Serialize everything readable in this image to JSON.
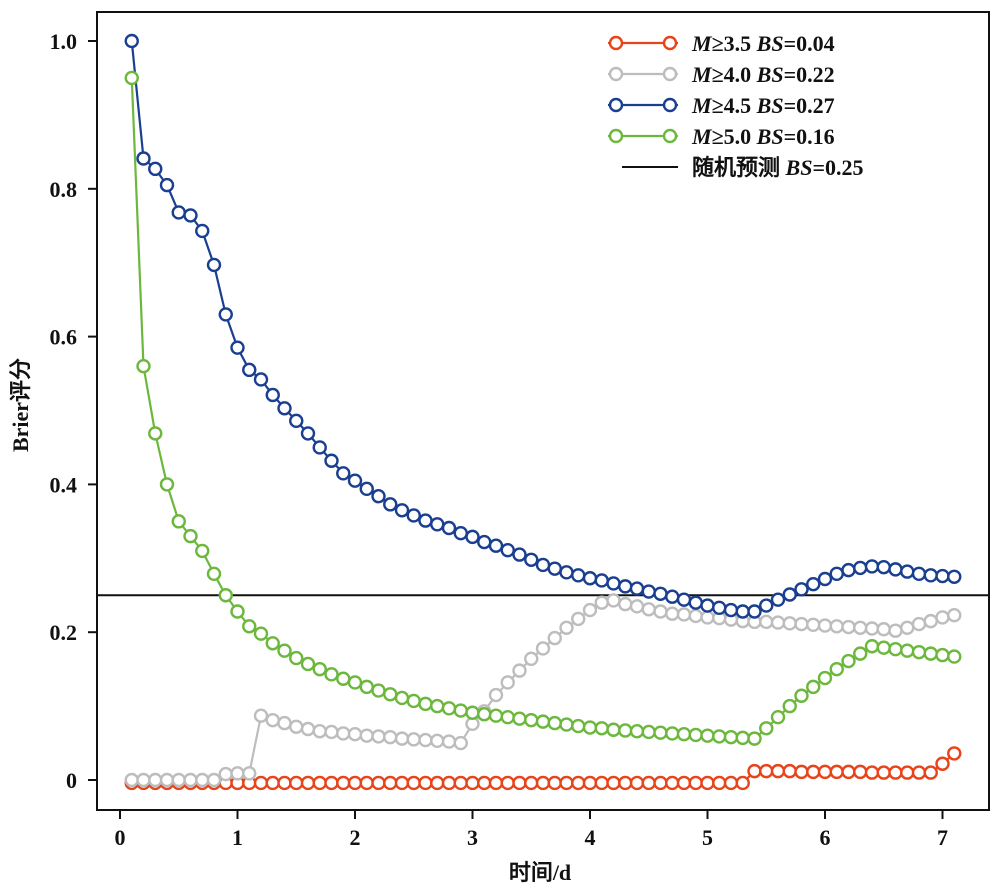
{
  "chart_data": {
    "type": "line",
    "xlabel": "时间/d",
    "ylabel": "Brier评分",
    "xlim": [
      -0.1,
      7.4
    ],
    "ylim": [
      -0.04,
      1.04
    ],
    "x_ticks": [
      0,
      1,
      2,
      3,
      4,
      5,
      6,
      7
    ],
    "y_ticks": [
      0,
      0.2,
      0.4,
      0.6,
      0.8,
      1.0
    ],
    "y_tick_labels": [
      "0",
      "0.2",
      "0.4",
      "0.6",
      "0.8",
      "1.0"
    ],
    "grid": false,
    "legend_position": "top-right",
    "x": [
      0.1,
      0.2,
      0.3,
      0.4,
      0.5,
      0.6,
      0.7,
      0.8,
      0.9,
      1.0,
      1.1,
      1.2,
      1.3,
      1.4,
      1.5,
      1.6,
      1.7,
      1.8,
      1.9,
      2.0,
      2.1,
      2.2,
      2.3,
      2.4,
      2.5,
      2.6,
      2.7,
      2.8,
      2.9,
      3.0,
      3.1,
      3.2,
      3.3,
      3.4,
      3.5,
      3.6,
      3.7,
      3.8,
      3.9,
      4.0,
      4.1,
      4.2,
      4.3,
      4.4,
      4.5,
      4.6,
      4.7,
      4.8,
      4.9,
      5.0,
      5.1,
      5.2,
      5.3,
      5.4,
      5.5,
      5.6,
      5.7,
      5.8,
      5.9,
      6.0,
      6.1,
      6.2,
      6.3,
      6.4,
      6.5,
      6.6,
      6.7,
      6.8,
      6.9,
      7.0,
      7.1
    ],
    "series": [
      {
        "name": "M≥3.5 BS=0.04",
        "label_prefix": "M",
        "label_mid": "≥3.5 ",
        "label_bs": "BS",
        "label_val": "=0.04",
        "color": "#e8441a",
        "values": [
          -0.004,
          -0.004,
          -0.004,
          -0.004,
          -0.004,
          -0.004,
          -0.004,
          -0.004,
          -0.004,
          -0.004,
          -0.004,
          -0.004,
          -0.004,
          -0.004,
          -0.004,
          -0.004,
          -0.004,
          -0.004,
          -0.004,
          -0.004,
          -0.004,
          -0.004,
          -0.004,
          -0.004,
          -0.004,
          -0.004,
          -0.004,
          -0.004,
          -0.004,
          -0.004,
          -0.004,
          -0.004,
          -0.004,
          -0.004,
          -0.004,
          -0.004,
          -0.004,
          -0.004,
          -0.004,
          -0.004,
          -0.004,
          -0.004,
          -0.004,
          -0.004,
          -0.004,
          -0.004,
          -0.004,
          -0.004,
          -0.004,
          -0.004,
          -0.004,
          -0.004,
          -0.004,
          0.012,
          0.012,
          0.012,
          0.012,
          0.011,
          0.011,
          0.011,
          0.011,
          0.011,
          0.011,
          0.01,
          0.01,
          0.01,
          0.01,
          0.01,
          0.01,
          0.022,
          0.036
        ]
      },
      {
        "name": "M≥4.0 BS=0.22",
        "label_prefix": "M",
        "label_mid": "≥4.0 ",
        "label_bs": "BS",
        "label_val": "=0.22",
        "color": "#bdbdbd",
        "values": [
          0.0,
          0.0,
          0.0,
          0.0,
          0.0,
          0.0,
          0.0,
          0.0,
          0.008,
          0.009,
          0.009,
          0.087,
          0.081,
          0.077,
          0.072,
          0.069,
          0.066,
          0.065,
          0.063,
          0.062,
          0.06,
          0.059,
          0.058,
          0.056,
          0.055,
          0.054,
          0.053,
          0.052,
          0.05,
          0.076,
          0.093,
          0.115,
          0.132,
          0.148,
          0.164,
          0.178,
          0.192,
          0.206,
          0.218,
          0.23,
          0.24,
          0.243,
          0.238,
          0.235,
          0.231,
          0.228,
          0.225,
          0.224,
          0.222,
          0.22,
          0.219,
          0.217,
          0.215,
          0.214,
          0.214,
          0.213,
          0.212,
          0.211,
          0.21,
          0.209,
          0.208,
          0.207,
          0.206,
          0.205,
          0.204,
          0.202,
          0.206,
          0.211,
          0.215,
          0.22,
          0.223
        ]
      },
      {
        "name": "M≥4.5 BS=0.27",
        "label_prefix": "M",
        "label_mid": "≥4.5 ",
        "label_bs": "BS",
        "label_val": "=0.27",
        "color": "#1a3f91",
        "values": [
          1.0,
          0.841,
          0.827,
          0.805,
          0.768,
          0.764,
          0.743,
          0.697,
          0.63,
          0.585,
          0.555,
          0.542,
          0.521,
          0.503,
          0.486,
          0.469,
          0.45,
          0.432,
          0.415,
          0.405,
          0.394,
          0.384,
          0.373,
          0.365,
          0.358,
          0.351,
          0.346,
          0.341,
          0.334,
          0.329,
          0.322,
          0.317,
          0.311,
          0.305,
          0.298,
          0.291,
          0.286,
          0.281,
          0.277,
          0.273,
          0.27,
          0.266,
          0.262,
          0.259,
          0.255,
          0.252,
          0.248,
          0.244,
          0.24,
          0.236,
          0.233,
          0.23,
          0.228,
          0.228,
          0.236,
          0.244,
          0.251,
          0.258,
          0.265,
          0.272,
          0.279,
          0.284,
          0.287,
          0.289,
          0.288,
          0.285,
          0.282,
          0.279,
          0.277,
          0.276,
          0.275
        ]
      },
      {
        "name": "M≥5.0 BS=0.16",
        "label_prefix": "M",
        "label_mid": "≥5.0 ",
        "label_bs": "BS",
        "label_val": "=0.16",
        "color": "#6cb83d",
        "values": [
          0.95,
          0.56,
          0.469,
          0.4,
          0.35,
          0.33,
          0.31,
          0.279,
          0.25,
          0.228,
          0.208,
          0.198,
          0.185,
          0.175,
          0.165,
          0.157,
          0.15,
          0.143,
          0.137,
          0.132,
          0.126,
          0.121,
          0.116,
          0.111,
          0.107,
          0.103,
          0.1,
          0.097,
          0.094,
          0.091,
          0.089,
          0.087,
          0.085,
          0.083,
          0.081,
          0.079,
          0.077,
          0.075,
          0.073,
          0.071,
          0.07,
          0.068,
          0.067,
          0.066,
          0.065,
          0.064,
          0.063,
          0.062,
          0.061,
          0.06,
          0.059,
          0.058,
          0.057,
          0.056,
          0.07,
          0.085,
          0.1,
          0.114,
          0.126,
          0.138,
          0.15,
          0.161,
          0.171,
          0.181,
          0.179,
          0.177,
          0.175,
          0.173,
          0.171,
          0.169,
          0.167
        ]
      }
    ],
    "reference_line": {
      "name": "随机预测 BS=0.25",
      "label_prefix": "随机预测 ",
      "label_bs": "BS",
      "label_val": "=0.25",
      "y": 0.25,
      "color": "#111111"
    }
  }
}
